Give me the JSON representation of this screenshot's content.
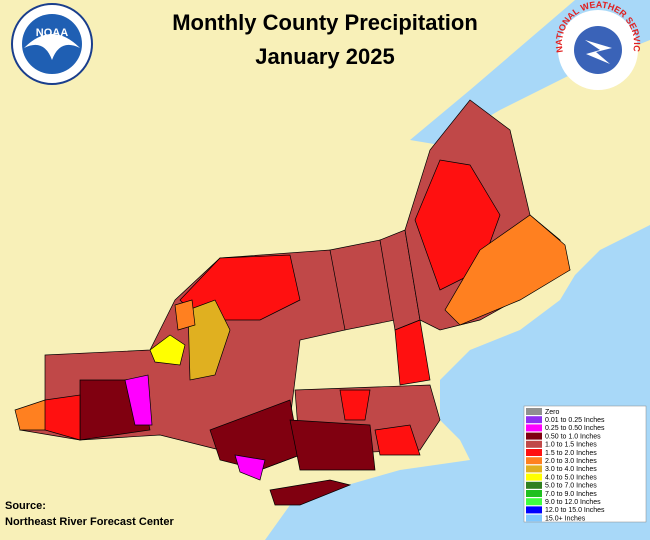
{
  "header": {
    "title": "Monthly County Precipitation",
    "subtitle": "January 2025"
  },
  "logos": {
    "noaa": "NOAA",
    "nws": "NATIONAL WEATHER SERVICE"
  },
  "legend": [
    {
      "label": "Zero",
      "color": "#909090"
    },
    {
      "label": "0.01 to 0.25 Inches",
      "color": "#9030f0"
    },
    {
      "label": "0.25 to 0.50 Inches",
      "color": "#ff00ff"
    },
    {
      "label": "0.50 to 1.0 Inches",
      "color": "#800010"
    },
    {
      "label": "1.0 to 1.5 Inches",
      "color": "#c04848"
    },
    {
      "label": "1.5 to 2.0 Inches",
      "color": "#ff1010"
    },
    {
      "label": "2.0 to 3.0 Inches",
      "color": "#ff8020"
    },
    {
      "label": "3.0 to 4.0 Inches",
      "color": "#e0b020"
    },
    {
      "label": "4.0 to 5.0 Inches",
      "color": "#ffff00"
    },
    {
      "label": "5.0 to 7.0 Inches",
      "color": "#308020"
    },
    {
      "label": "7.0 to 9.0 Inches",
      "color": "#20c020"
    },
    {
      "label": "9.0 to 12.0 Inches",
      "color": "#40ff40"
    },
    {
      "label": "12.0 to 15.0 Inches",
      "color": "#0000ff"
    },
    {
      "label": "15.0+ Inches",
      "color": "#80c8ff"
    }
  ],
  "source": {
    "label": "Source:",
    "text": "Northeast River Forecast Center"
  }
}
